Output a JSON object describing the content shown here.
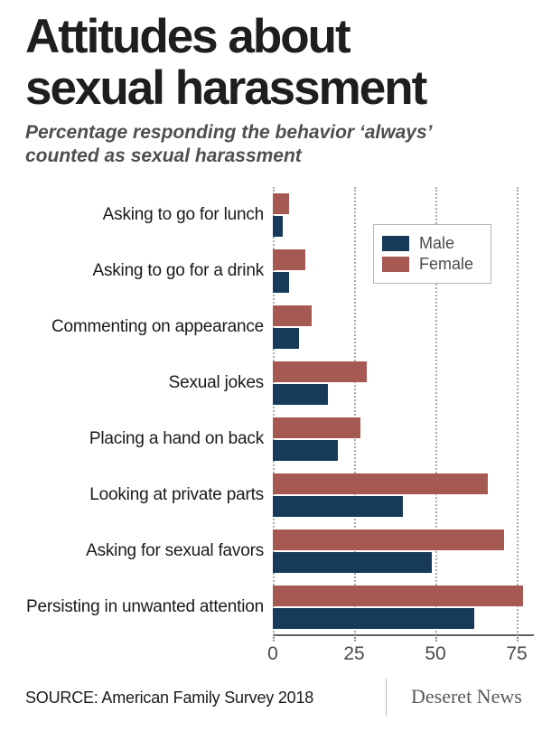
{
  "header": {
    "title_lines": [
      "Attitudes about",
      "sexual harassment"
    ],
    "subtitle_lines": [
      "Percentage responding the behavior ‘always’",
      "counted as sexual harassment"
    ]
  },
  "footer": {
    "source": "SOURCE: American Family Survey 2018",
    "brand": "Deseret News"
  },
  "chart_data": {
    "type": "bar",
    "orientation": "horizontal",
    "title": "Attitudes about sexual harassment",
    "subtitle": "Percentage responding the behavior ‘always’ counted as sexual harassment",
    "categories": [
      "Asking to go for lunch",
      "Asking to go for a drink",
      "Commenting on appearance",
      "Sexual jokes",
      "Placing a hand on back",
      "Looking at private parts",
      "Asking for sexual favors",
      "Persisting in unwanted attention"
    ],
    "series": [
      {
        "name": "Male",
        "color": "#17395A",
        "values": [
          3,
          5,
          8,
          17,
          20,
          40,
          49,
          62
        ]
      },
      {
        "name": "Female",
        "color": "#A65853",
        "values": [
          5,
          10,
          12,
          29,
          27,
          66,
          71,
          77
        ]
      }
    ],
    "bar_order_within_group": [
      "Female",
      "Male"
    ],
    "xticks": [
      0,
      25,
      50,
      75
    ],
    "xlim": [
      0,
      80
    ],
    "xlabel": "",
    "ylabel": "",
    "grid": "vertical-dotted",
    "legend_position": "inside-top-right"
  }
}
